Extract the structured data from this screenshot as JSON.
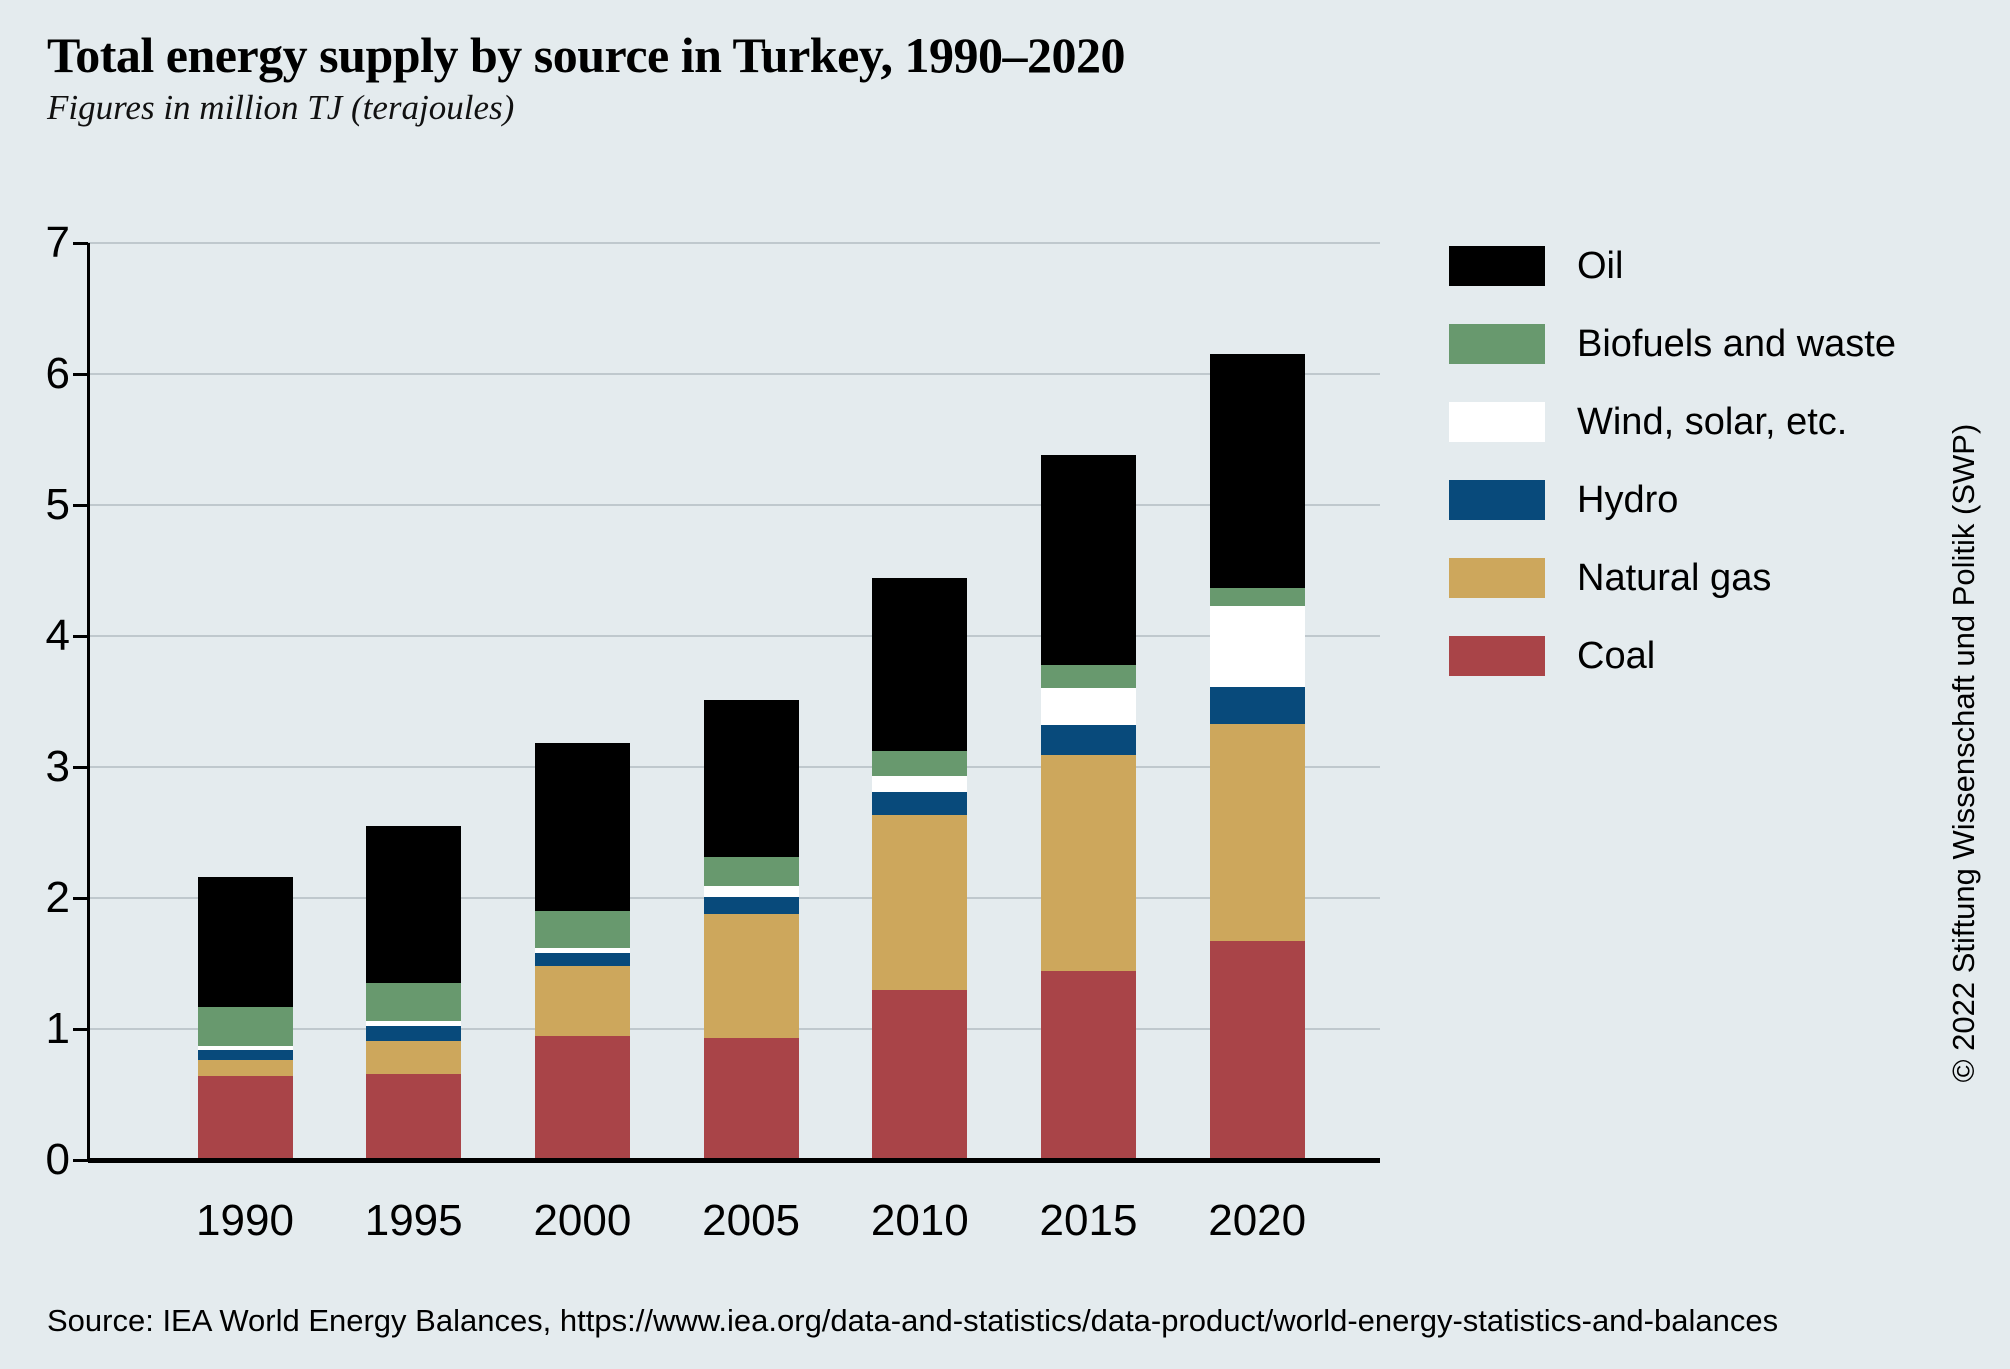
{
  "page": {
    "title": "Total energy supply by source in Turkey, 1990–2020",
    "subtitle": "Figures in million TJ (terajoules)",
    "source_line": "Source: IEA World Energy Balances, https://www.iea.org/data-and-statistics/data-product/world-energy-statistics-and-balances",
    "copyright_vertical": "© 2022 Stiftung Wissenschaft und Politik (SWP)",
    "background_color": "#e4ebee",
    "gridline_color": "#bfc8cd"
  },
  "chart_data": {
    "type": "bar",
    "stacked": true,
    "title": "Total energy supply by source in Turkey, 1990–2020",
    "subtitle": "Figures in million TJ (terajoules)",
    "unit": "million TJ",
    "categories": [
      "1990",
      "1995",
      "2000",
      "2005",
      "2010",
      "2015",
      "2020"
    ],
    "series": [
      {
        "key": "coal",
        "name": "Coal",
        "color": "#a94448",
        "values": [
          0.64,
          0.66,
          0.95,
          0.93,
          1.3,
          1.44,
          1.67
        ]
      },
      {
        "key": "natural-gas",
        "name": "Natural gas",
        "color": "#cda75c",
        "values": [
          0.12,
          0.25,
          0.53,
          0.95,
          1.33,
          1.65,
          1.66
        ]
      },
      {
        "key": "hydro",
        "name": "Hydro",
        "color": "#084a7b",
        "values": [
          0.08,
          0.11,
          0.1,
          0.13,
          0.18,
          0.23,
          0.28
        ]
      },
      {
        "key": "wind-solar",
        "name": "Wind, solar, etc.",
        "color": "#ffffff",
        "values": [
          0.03,
          0.04,
          0.04,
          0.08,
          0.12,
          0.28,
          0.62
        ]
      },
      {
        "key": "biofuels",
        "name": "Biofuels and waste",
        "color": "#68996e",
        "values": [
          0.3,
          0.29,
          0.28,
          0.22,
          0.19,
          0.18,
          0.14
        ]
      },
      {
        "key": "oil",
        "name": "Oil",
        "color": "#000000",
        "values": [
          0.99,
          1.2,
          1.28,
          1.2,
          1.32,
          1.6,
          1.78
        ]
      }
    ],
    "totals": [
      2.16,
      2.55,
      3.18,
      3.51,
      4.44,
      5.38,
      6.15
    ],
    "ylim": [
      0,
      7
    ],
    "yticks": [
      0,
      1,
      2,
      3,
      4,
      5,
      6,
      7
    ],
    "grid": true,
    "legend": {
      "position": "right",
      "order_top_to_bottom": [
        "Oil",
        "Biofuels and waste",
        "Wind, solar, etc.",
        "Hydro",
        "Natural gas",
        "Coal"
      ]
    }
  }
}
